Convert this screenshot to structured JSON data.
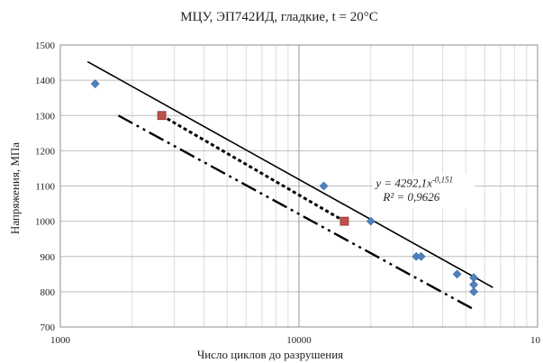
{
  "chart_data": {
    "type": "scatter",
    "title": "МЦУ, ЭП742ИД, гладкие,  t = 20°C",
    "xlabel": "Число циклов до разрушения",
    "ylabel": "Напряжения, МПа",
    "x_scale": "log",
    "xlim": [
      1000,
      100000
    ],
    "ylim": [
      700,
      1500
    ],
    "x_ticks": [
      "1000",
      "10000",
      "10"
    ],
    "y_ticks": [
      "700",
      "800",
      "900",
      "1000",
      "1100",
      "1200",
      "1300",
      "1400",
      "1500"
    ],
    "grid": true,
    "series": [
      {
        "marker": "diamond",
        "color": "#4f81bd",
        "points": [
          {
            "x": 1400,
            "y": 1390
          },
          {
            "x": 12700,
            "y": 1100
          },
          {
            "x": 20000,
            "y": 1000
          },
          {
            "x": 31000,
            "y": 900
          },
          {
            "x": 32500,
            "y": 900
          },
          {
            "x": 46000,
            "y": 850
          },
          {
            "x": 54000,
            "y": 840
          },
          {
            "x": 54000,
            "y": 820
          },
          {
            "x": 54000,
            "y": 800
          }
        ]
      },
      {
        "marker": "square",
        "color": "#c0504d",
        "points": [
          {
            "x": 2660,
            "y": 1300
          },
          {
            "x": 15500,
            "y": 1000
          }
        ]
      }
    ],
    "lines": [
      {
        "style": "solid",
        "color": "#000000",
        "x": [
          1300,
          65000
        ],
        "y": [
          1453,
          812
        ]
      },
      {
        "style": "dashed",
        "color": "#000000",
        "x": [
          2660,
          15500
        ],
        "y": [
          1300,
          1000
        ]
      },
      {
        "style": "dash-dot-dot",
        "color": "#000000",
        "x": [
          1750,
          54000
        ],
        "y": [
          1300,
          750
        ]
      }
    ],
    "annotations": [
      {
        "id": "eq1",
        "text": "y = 4292,1x",
        "sup": "-0,151",
        "x": 21000,
        "y": 1100
      },
      {
        "id": "eq2",
        "text": "R² = 0,9626",
        "x": 21000,
        "y": 1060
      }
    ]
  }
}
